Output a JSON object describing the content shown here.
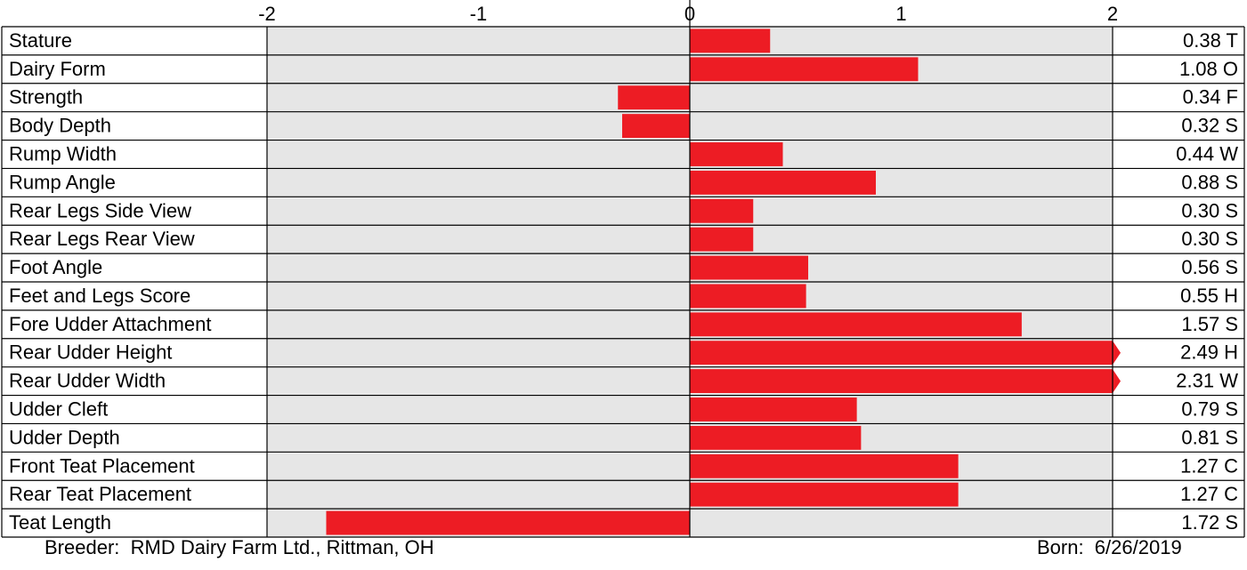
{
  "chart_data": {
    "type": "bar",
    "orientation": "horizontal",
    "xlim": [
      -2,
      2
    ],
    "x_ticks": [
      -2,
      -1,
      0,
      1,
      2
    ],
    "x_tick_labels": [
      "-2",
      "-1",
      "0",
      "1",
      "2"
    ],
    "plot_background": "#e6e6e6",
    "bar_color": "#ed1c24",
    "categories": [
      "Stature",
      "Dairy Form",
      "Strength",
      "Body Depth",
      "Rump Width",
      "Rump Angle",
      "Rear Legs Side View",
      "Rear Legs Rear View",
      "Foot Angle",
      "Feet and Legs Score",
      "Fore Udder Attachment",
      "Rear Udder Height",
      "Rear Udder Width",
      "Udder Cleft",
      "Udder Depth",
      "Front Teat Placement",
      "Rear Teat Placement",
      "Teat Length"
    ],
    "values": [
      0.38,
      1.08,
      -0.34,
      -0.32,
      0.44,
      0.88,
      0.3,
      0.3,
      0.56,
      0.55,
      1.57,
      2.49,
      2.31,
      0.79,
      0.81,
      1.27,
      1.27,
      -1.72
    ],
    "value_labels": [
      "0.38 T",
      "1.08 O",
      "0.34 F",
      "0.32 S",
      "0.44 W",
      "0.88 S",
      "0.30 S",
      "0.30 S",
      "0.56 S",
      "0.55 H",
      "1.57 S",
      "2.49 H",
      "2.31 W",
      "0.79 S",
      "0.81 S",
      "1.27 C",
      "1.27 C",
      "1.72 S"
    ]
  },
  "footer": {
    "breeder": "Breeder:  RMD Dairy Farm Ltd., Rittman, OH",
    "born": "Born:  6/26/2019"
  }
}
